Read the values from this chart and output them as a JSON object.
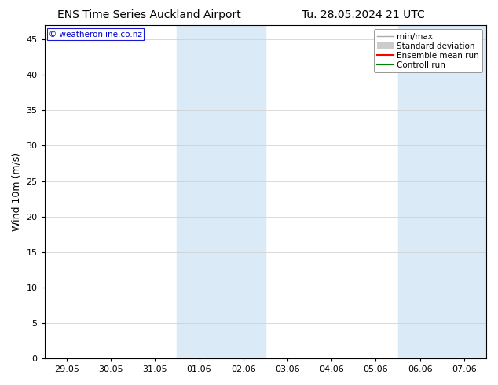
{
  "title_left": "ENS Time Series Auckland Airport",
  "title_right": "Tu. 28.05.2024 21 UTC",
  "ylabel": "Wind 10m (m/s)",
  "ylim": [
    0,
    47
  ],
  "yticks": [
    0,
    5,
    10,
    15,
    20,
    25,
    30,
    35,
    40,
    45
  ],
  "x_tick_labels": [
    "29.05",
    "30.05",
    "31.05",
    "01.06",
    "02.06",
    "03.06",
    "04.06",
    "05.06",
    "06.06",
    "07.06"
  ],
  "x_tick_positions": [
    0,
    1,
    2,
    3,
    4,
    5,
    6,
    7,
    8,
    9
  ],
  "x_min": -0.5,
  "x_max": 9.5,
  "shaded_regions": [
    {
      "x_start": 2.5,
      "x_end": 4.5,
      "color": "#daeaf7"
    },
    {
      "x_start": 7.5,
      "x_end": 9.5,
      "color": "#daeaf7"
    }
  ],
  "legend_entries": [
    {
      "label": "min/max",
      "color": "#aaaaaa",
      "linewidth": 1.0,
      "linestyle": "-",
      "type": "line"
    },
    {
      "label": "Standard deviation",
      "color": "#cccccc",
      "linewidth": 6,
      "linestyle": "-",
      "type": "band"
    },
    {
      "label": "Ensemble mean run",
      "color": "#ff0000",
      "linewidth": 1.5,
      "linestyle": "-",
      "type": "line"
    },
    {
      "label": "Controll run",
      "color": "#008000",
      "linewidth": 1.5,
      "linestyle": "-",
      "type": "line"
    }
  ],
  "watermark_text": "© weatheronline.co.nz",
  "watermark_color": "#0000cc",
  "bg_color": "#ffffff",
  "plot_bg_color": "#ffffff",
  "grid_color": "#cccccc",
  "font_color": "#000000",
  "title_fontsize": 10,
  "label_fontsize": 9,
  "tick_fontsize": 8,
  "legend_fontsize": 7.5
}
